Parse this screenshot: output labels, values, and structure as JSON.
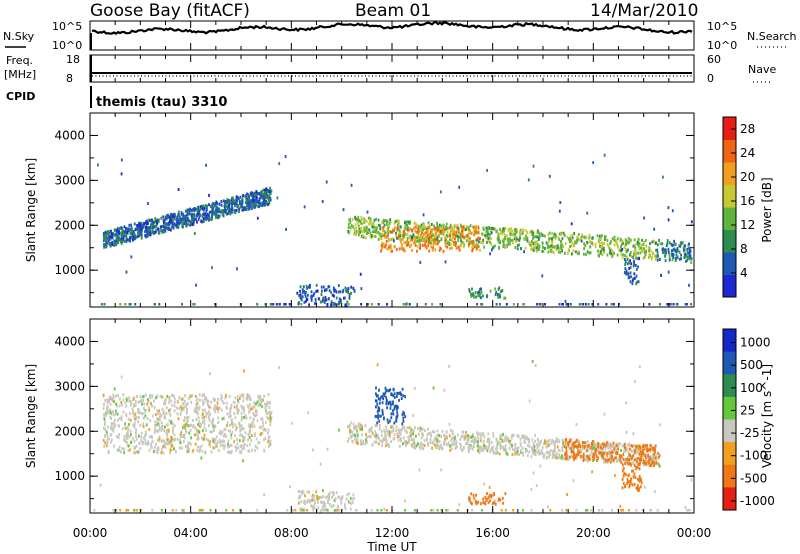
{
  "header": {
    "station": "Goose Bay (fitACF)",
    "beam": "Beam 01",
    "date": "14/Mar/2010"
  },
  "noise_panel": {
    "left_label": "N.Sky",
    "left_ticks": [
      "10^5",
      "10^0"
    ],
    "right_label": "N.Search",
    "right_ticks": [
      "10^5",
      "10^0"
    ]
  },
  "freq_panel": {
    "left_label_1": "Freq.",
    "left_label_2": "[MHz]",
    "left_ticks": [
      "18",
      "8"
    ],
    "right_label": "Nave",
    "right_ticks": [
      "60",
      "0"
    ]
  },
  "cpid": {
    "label": "CPID",
    "value": "themis (tau) 3310"
  },
  "colors": {
    "power_scale": [
      "#1e28d2",
      "#1e5ab4",
      "#2d8c50",
      "#5fb43c",
      "#c8c832",
      "#f0a01e",
      "#f06414",
      "#e61e14"
    ],
    "velocity_scale": [
      "#1428c8",
      "#1e5ab4",
      "#2d8c50",
      "#64c83c",
      "#c8c8c0",
      "#f0a01e",
      "#f07814",
      "#e61e14"
    ]
  },
  "chart_data": [
    {
      "type": "heatmap",
      "panel": "power",
      "ylabel": "Slant Range [km]",
      "ylim": [
        180,
        4500
      ],
      "yticks": [
        "1000",
        "2000",
        "3000",
        "4000"
      ],
      "xlim": [
        0,
        24
      ],
      "colorbar_label": "Power [dB]",
      "colorbar_ticks": [
        "4",
        "8",
        "12",
        "16",
        "20",
        "24",
        "28"
      ],
      "colorbar_range": [
        0,
        30
      ],
      "regions": [
        {
          "t": [
            0.5,
            7.2
          ],
          "r": [
            1550,
            2850
          ],
          "value": 6,
          "note": "rising band"
        },
        {
          "t": [
            10.2,
            22.5
          ],
          "r": [
            1300,
            2200
          ],
          "value": 14,
          "note": "main echo band"
        },
        {
          "t": [
            11.5,
            15.5
          ],
          "r": [
            1450,
            2000
          ],
          "value": 22,
          "note": "core"
        },
        {
          "t": [
            8.2,
            10.5
          ],
          "r": [
            250,
            700
          ],
          "value": 6
        },
        {
          "t": [
            15,
            16.5
          ],
          "r": [
            400,
            650
          ],
          "value": 10
        },
        {
          "t": [
            21.2,
            21.8
          ],
          "r": [
            700,
            1300
          ],
          "value": 6
        },
        {
          "t": [
            22.5,
            23.9
          ],
          "r": [
            1300,
            1950
          ],
          "value": 8
        }
      ]
    },
    {
      "type": "heatmap",
      "panel": "velocity",
      "ylabel": "Slant Range [km]",
      "ylim": [
        180,
        4500
      ],
      "yticks": [
        "1000",
        "2000",
        "3000",
        "4000"
      ],
      "xlabel": "Time UT",
      "xticks": [
        "00:00",
        "04:00",
        "08:00",
        "12:00",
        "16:00",
        "20:00",
        "00:00"
      ],
      "xlim": [
        0,
        24
      ],
      "colorbar_label": "Velocity [m s^-1]",
      "colorbar_ticks": [
        "1000",
        "500",
        "100",
        "25",
        "-25",
        "-100",
        "-500",
        "-1000"
      ],
      "regions": [
        {
          "t": [
            0.5,
            7.2
          ],
          "r": [
            1550,
            2850
          ],
          "value": 0,
          "note": "ground scatter"
        },
        {
          "t": [
            10.2,
            22.5
          ],
          "r": [
            1300,
            2200
          ],
          "value": 0
        },
        {
          "t": [
            11.3,
            12.5
          ],
          "r": [
            2200,
            3000
          ],
          "value": 150
        },
        {
          "t": [
            18.8,
            22.6
          ],
          "r": [
            1300,
            1800
          ],
          "value": -200
        },
        {
          "t": [
            21.1,
            21.9
          ],
          "r": [
            700,
            1300
          ],
          "value": -300
        },
        {
          "t": [
            15,
            16.5
          ],
          "r": [
            400,
            650
          ],
          "value": -150
        },
        {
          "t": [
            8.2,
            10.5
          ],
          "r": [
            250,
            700
          ],
          "value": 0
        }
      ]
    }
  ]
}
